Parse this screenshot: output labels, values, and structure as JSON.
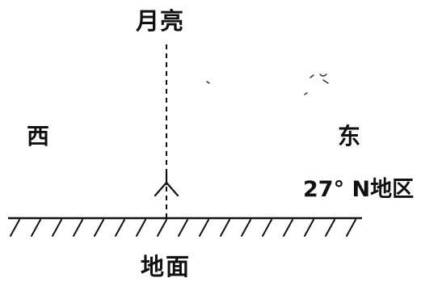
{
  "labels": {
    "moon": "月亮",
    "west": "西",
    "east": "东",
    "region": "27° N地区",
    "ground": "地面"
  },
  "colors": {
    "ink": "#111111",
    "background": "#ffffff"
  },
  "icons": {
    "observer": "stick-figure-icon"
  }
}
